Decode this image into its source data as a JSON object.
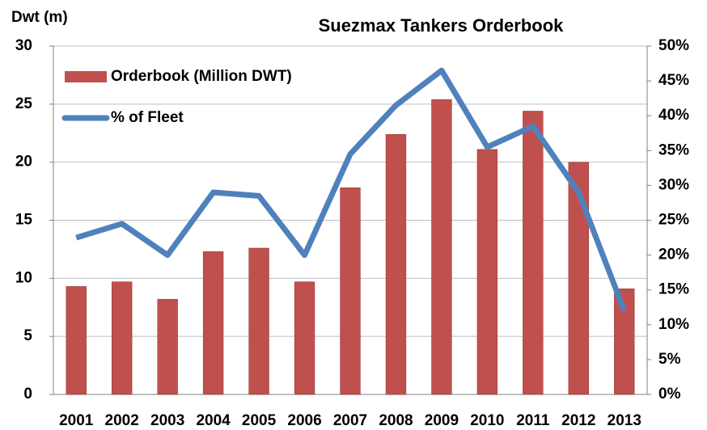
{
  "chart_data": {
    "type": "bar_line",
    "title": "Suezmax Tankers Orderbook",
    "y_label": "Dwt (m)",
    "categories": [
      "2001",
      "2002",
      "2003",
      "2004",
      "2005",
      "2006",
      "2007",
      "2008",
      "2009",
      "2010",
      "2011",
      "2012",
      "2013"
    ],
    "series": [
      {
        "name": "Orderbook (Million DWT)",
        "type": "bar",
        "color": "#c0504d",
        "values": [
          9.3,
          9.7,
          8.2,
          12.3,
          12.6,
          9.7,
          17.8,
          22.4,
          25.4,
          21.1,
          24.4,
          20.0,
          9.1
        ]
      },
      {
        "name": "% of Fleet",
        "type": "line",
        "color": "#4f81bd",
        "axis": "y2",
        "values": [
          22.5,
          24.5,
          20,
          29,
          28.5,
          20,
          34.5,
          41.5,
          46.5,
          35.5,
          38.5,
          29,
          12
        ]
      }
    ],
    "ylim": [
      0,
      30
    ],
    "yticks": [
      0,
      5,
      10,
      15,
      20,
      25,
      30
    ],
    "y2lim": [
      0,
      50
    ],
    "y2ticks": [
      {
        "value": 0,
        "label": "0%"
      },
      {
        "value": 5,
        "label": "5%"
      },
      {
        "value": 10,
        "label": "10%"
      },
      {
        "value": 15,
        "label": "15%"
      },
      {
        "value": 20,
        "label": "20%"
      },
      {
        "value": 25,
        "label": "25%"
      },
      {
        "value": 30,
        "label": "30%"
      },
      {
        "value": 35,
        "label": "35%"
      },
      {
        "value": 40,
        "label": "40%"
      },
      {
        "value": 45,
        "label": "45%"
      },
      {
        "value": 50,
        "label": "50%"
      }
    ],
    "grid": true,
    "legend": "top-left"
  }
}
